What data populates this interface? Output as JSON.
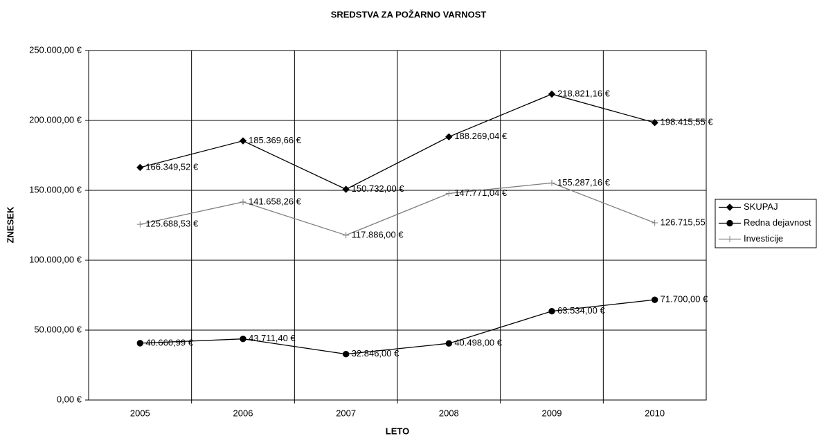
{
  "chart_data": {
    "type": "line",
    "title": "SREDSTVA ZA POŽARNO VARNOST",
    "xlabel": "LETO",
    "ylabel": "ZNESEK",
    "categories": [
      "2005",
      "2006",
      "2007",
      "2008",
      "2009",
      "2010"
    ],
    "series": [
      {
        "name": "SKUPAJ",
        "color": "#000000",
        "marker": "diamond",
        "values": [
          166349.52,
          185369.66,
          150732.0,
          188269.04,
          218821.16,
          198415.55
        ],
        "value_labels": [
          "166.349,52 €",
          "185.369,66 €",
          "150.732,00 €",
          "188.269,04 €",
          "218.821,16 €",
          "198.415,55 €"
        ]
      },
      {
        "name": "Redna dejavnost",
        "color": "#000000",
        "marker": "circle",
        "values": [
          40660.99,
          43711.4,
          32846.0,
          40498.0,
          63534.0,
          71700.0
        ],
        "value_labels": [
          "40.660,99 €",
          "43.711,40 €",
          "32.846,00 €",
          "40.498,00 €",
          "63.534,00 €",
          "71.700,00 €"
        ]
      },
      {
        "name": "Investicije",
        "color": "#808080",
        "marker": "plus",
        "values": [
          125688.53,
          141658.26,
          117886.0,
          147771.04,
          155287.16,
          126715.55
        ],
        "value_labels": [
          "125.688,53 €",
          "141.658,26 €",
          "117.886,00 €",
          "147.771,04 €",
          "155.287,16 €",
          "126.715,55"
        ]
      }
    ],
    "ylim": [
      0,
      250000
    ],
    "yticks": [
      {
        "value": 0,
        "label": "0,00 €"
      },
      {
        "value": 50000,
        "label": "50.000,00 €"
      },
      {
        "value": 100000,
        "label": "100.000,00 €"
      },
      {
        "value": 150000,
        "label": "150.000,00 €"
      },
      {
        "value": 200000,
        "label": "200.000,00 €"
      },
      {
        "value": 250000,
        "label": "250.000,00 €"
      }
    ],
    "grid": true,
    "legend": "right"
  }
}
